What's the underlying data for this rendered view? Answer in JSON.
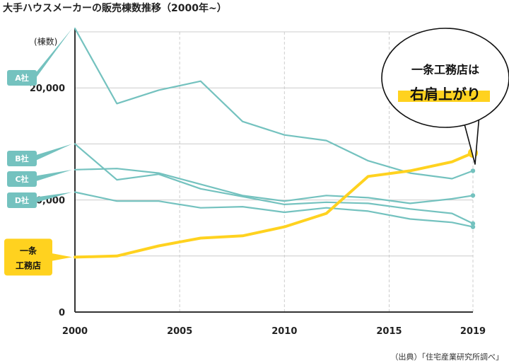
{
  "title": "大手ハウスメーカーの販売棟数推移（2000年~）",
  "source": "（出典）「住宅産業研究所調べ」",
  "colors": {
    "teal": "#74c2bf",
    "yellow": "#ffd21f",
    "axis": "#333333",
    "grid": "#cccccc"
  },
  "callout": {
    "line1": "一条工務店は",
    "line2": "右肩上がり"
  },
  "chart_data": {
    "type": "line",
    "ylabel": "(棟数)",
    "xlim": [
      2000,
      2019
    ],
    "ylim": [
      0,
      25000
    ],
    "xticks": [
      {
        "value": 2000,
        "label": "2000"
      },
      {
        "value": 2005,
        "label": "2005"
      },
      {
        "value": 2010,
        "label": "2010"
      },
      {
        "value": 2015,
        "label": "2015"
      },
      {
        "value": 2019,
        "label": "2019"
      }
    ],
    "yticks": [
      {
        "value": 0,
        "label": "0"
      },
      {
        "value": 10000,
        "label": "10,000"
      },
      {
        "value": 20000,
        "label": "20,000"
      }
    ],
    "series": [
      {
        "name": "A社",
        "color": "#74c2bf",
        "x": [
          2000,
          2002,
          2004,
          2006,
          2008,
          2010,
          2012,
          2014,
          2016,
          2018,
          2019
        ],
        "y": [
          25300,
          18600,
          19800,
          20600,
          17000,
          15800,
          15300,
          13500,
          12400,
          11900,
          12600
        ]
      },
      {
        "name": "B社",
        "color": "#74c2bf",
        "x": [
          2000,
          2002,
          2004,
          2006,
          2008,
          2010,
          2012,
          2014,
          2016,
          2018,
          2019
        ],
        "y": [
          15000,
          11800,
          12300,
          11000,
          10300,
          9600,
          9800,
          9700,
          9200,
          8800,
          7900
        ]
      },
      {
        "name": "C社",
        "color": "#74c2bf",
        "x": [
          2000,
          2002,
          2004,
          2006,
          2008,
          2010,
          2012,
          2014,
          2016,
          2018,
          2019
        ],
        "y": [
          12700,
          12800,
          12400,
          11400,
          10400,
          9900,
          10400,
          10200,
          9700,
          10100,
          10400
        ]
      },
      {
        "name": "D社",
        "color": "#74c2bf",
        "x": [
          2000,
          2002,
          2004,
          2006,
          2008,
          2010,
          2012,
          2014,
          2016,
          2018,
          2019
        ],
        "y": [
          10700,
          9900,
          9900,
          9300,
          9400,
          8900,
          9300,
          9000,
          8300,
          8000,
          7600
        ]
      },
      {
        "name": "一条工務店",
        "name_line1": "一条",
        "name_line2": "工務店",
        "color": "#ffd21f",
        "x": [
          2000,
          2002,
          2004,
          2006,
          2008,
          2010,
          2012,
          2014,
          2016,
          2018,
          2019
        ],
        "y": [
          4900,
          5000,
          5900,
          6600,
          6800,
          7600,
          8800,
          12100,
          12600,
          13400,
          14200
        ]
      }
    ]
  }
}
